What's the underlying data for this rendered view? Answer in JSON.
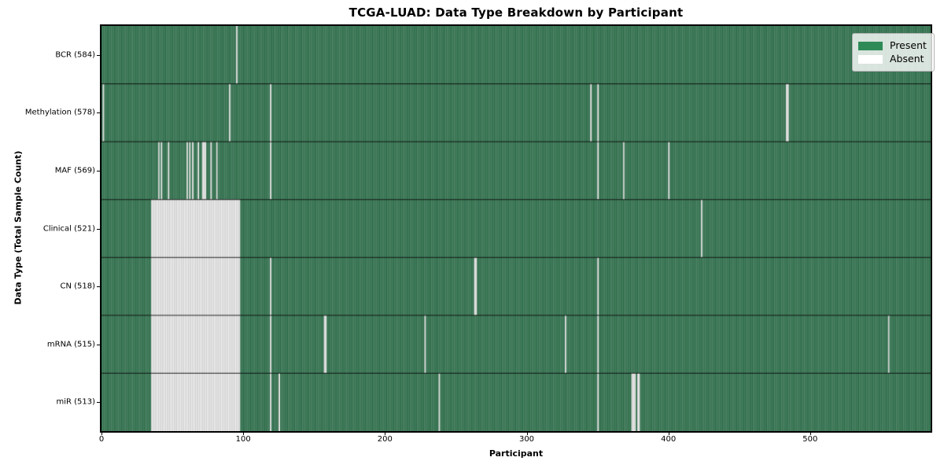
{
  "legend": {
    "items": [
      {
        "label": "Present",
        "color": "#2e8b57"
      },
      {
        "label": "Absent",
        "color": "#ffffff"
      }
    ],
    "position": "upper right"
  },
  "colors": {
    "present_fill": "#4e8b68",
    "present_edge": "#1e5a3a",
    "absent_fill": "#fdfdfd",
    "absent_edge": "#a0a0a0",
    "row_divider": "rgba(0,0,0,0.85)",
    "plot_border": "#000000",
    "legend_swatch_present": "#2e8b57",
    "legend_swatch_absent": "#ffffff"
  },
  "chart_data": {
    "type": "heatmap",
    "title": "TCGA-LUAD: Data Type Breakdown by Participant",
    "xlabel": "Participant",
    "ylabel": "Data Type (Total Sample Count)",
    "x_ticks": [
      0,
      100,
      200,
      300,
      400,
      500
    ],
    "x_range": [
      0,
      585
    ],
    "n_participants": 585,
    "grid": false,
    "cell_values": {
      "present": 1,
      "absent": 0
    },
    "rows": [
      {
        "label": "BCR (584)",
        "name": "BCR",
        "present_count": 584,
        "absent_ranges": [
          [
            95,
            95
          ]
        ]
      },
      {
        "label": "Methylation (578)",
        "name": "Methylation",
        "present_count": 578,
        "absent_ranges": [
          [
            1,
            1
          ],
          [
            90,
            90
          ],
          [
            119,
            119
          ],
          [
            345,
            345
          ],
          [
            350,
            350
          ],
          [
            483,
            484
          ]
        ]
      },
      {
        "label": "MAF (569)",
        "name": "MAF",
        "present_count": 569,
        "absent_ranges": [
          [
            40,
            40
          ],
          [
            42,
            42
          ],
          [
            47,
            47
          ],
          [
            60,
            60
          ],
          [
            62,
            62
          ],
          [
            64,
            64
          ],
          [
            68,
            68
          ],
          [
            71,
            73
          ],
          [
            77,
            77
          ],
          [
            81,
            81
          ],
          [
            119,
            119
          ],
          [
            350,
            350
          ],
          [
            368,
            368
          ],
          [
            400,
            400
          ]
        ]
      },
      {
        "label": "Clinical (521)",
        "name": "Clinical",
        "present_count": 521,
        "absent_ranges": [
          [
            35,
            97
          ],
          [
            423,
            423
          ]
        ]
      },
      {
        "label": "CN (518)",
        "name": "CN",
        "present_count": 518,
        "absent_ranges": [
          [
            35,
            97
          ],
          [
            119,
            119
          ],
          [
            263,
            264
          ],
          [
            350,
            350
          ]
        ]
      },
      {
        "label": "mRNA (515)",
        "name": "mRNA",
        "present_count": 515,
        "absent_ranges": [
          [
            35,
            97
          ],
          [
            119,
            119
          ],
          [
            157,
            158
          ],
          [
            228,
            228
          ],
          [
            327,
            327
          ],
          [
            350,
            350
          ],
          [
            555,
            555
          ]
        ]
      },
      {
        "label": "miR (513)",
        "name": "miR",
        "present_count": 513,
        "absent_ranges": [
          [
            35,
            97
          ],
          [
            119,
            119
          ],
          [
            125,
            125
          ],
          [
            238,
            238
          ],
          [
            350,
            350
          ],
          [
            374,
            376
          ],
          [
            378,
            379
          ]
        ]
      }
    ]
  }
}
